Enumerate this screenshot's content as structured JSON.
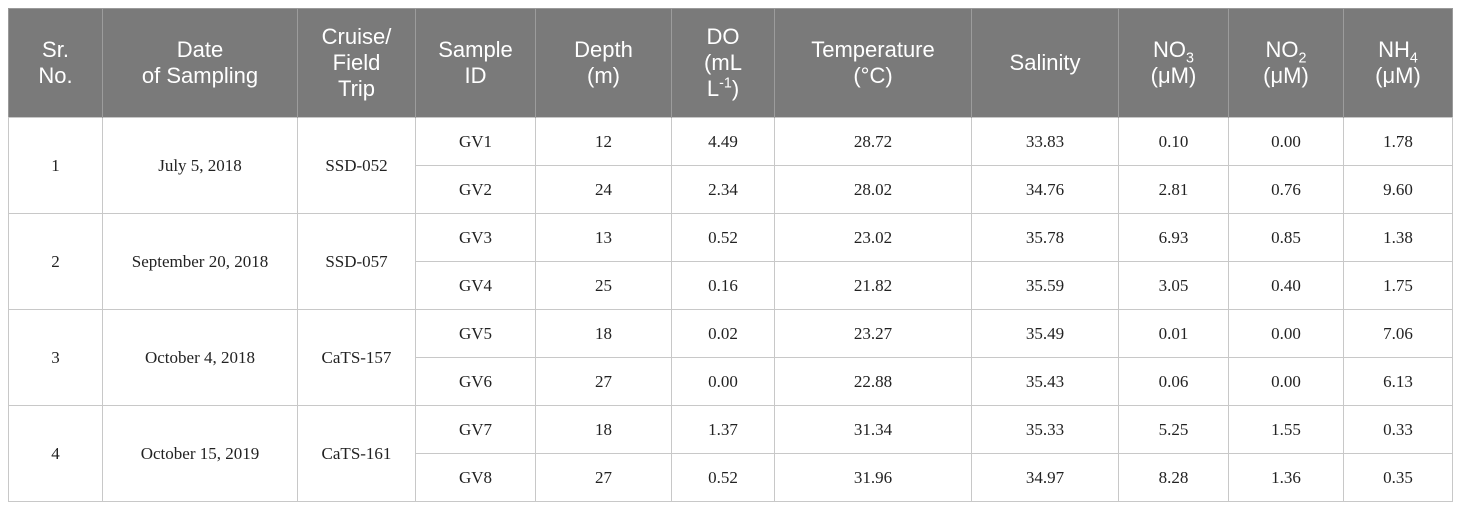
{
  "columns": [
    {
      "lines": [
        "Sr.",
        "No."
      ]
    },
    {
      "lines": [
        "Date",
        "of Sampling"
      ]
    },
    {
      "lines": [
        "Cruise/",
        "Field",
        "Trip"
      ]
    },
    {
      "lines": [
        "Sample",
        "ID"
      ]
    },
    {
      "lines": [
        "Depth",
        "(m)"
      ]
    },
    {
      "lines": [
        "DO",
        "(mL",
        "L"
      ],
      "sup": "-1",
      "close": ")"
    },
    {
      "lines": [
        "Temperature",
        "(°C)"
      ]
    },
    {
      "lines": [
        "Salinity"
      ]
    },
    {
      "base": "NO",
      "sub": "3",
      "unit": "(μM)"
    },
    {
      "base": "NO",
      "sub": "2",
      "unit": "(μM)"
    },
    {
      "base": "NH",
      "sub": "4",
      "unit": "(μM)"
    }
  ],
  "groups": [
    {
      "sr": "1",
      "date": "July 5, 2018",
      "cruise": "SSD-052",
      "rows": [
        [
          "GV1",
          "12",
          "4.49",
          "28.72",
          "33.83",
          "0.10",
          "0.00",
          "1.78"
        ],
        [
          "GV2",
          "24",
          "2.34",
          "28.02",
          "34.76",
          "2.81",
          "0.76",
          "9.60"
        ]
      ]
    },
    {
      "sr": "2",
      "date": "September 20, 2018",
      "cruise": "SSD-057",
      "rows": [
        [
          "GV3",
          "13",
          "0.52",
          "23.02",
          "35.78",
          "6.93",
          "0.85",
          "1.38"
        ],
        [
          "GV4",
          "25",
          "0.16",
          "21.82",
          "35.59",
          "3.05",
          "0.40",
          "1.75"
        ]
      ]
    },
    {
      "sr": "3",
      "date": "October 4, 2018",
      "cruise": "CaTS-157",
      "rows": [
        [
          "GV5",
          "18",
          "0.02",
          "23.27",
          "35.49",
          "0.01",
          "0.00",
          "7.06"
        ],
        [
          "GV6",
          "27",
          "0.00",
          "22.88",
          "35.43",
          "0.06",
          "0.00",
          "6.13"
        ]
      ]
    },
    {
      "sr": "4",
      "date": "October 15, 2019",
      "cruise": "CaTS-161",
      "rows": [
        [
          "GV7",
          "18",
          "1.37",
          "31.34",
          "35.33",
          "5.25",
          "1.55",
          "0.33"
        ],
        [
          "GV8",
          "27",
          "0.52",
          "31.96",
          "34.97",
          "8.28",
          "1.36",
          "0.35"
        ]
      ]
    }
  ]
}
